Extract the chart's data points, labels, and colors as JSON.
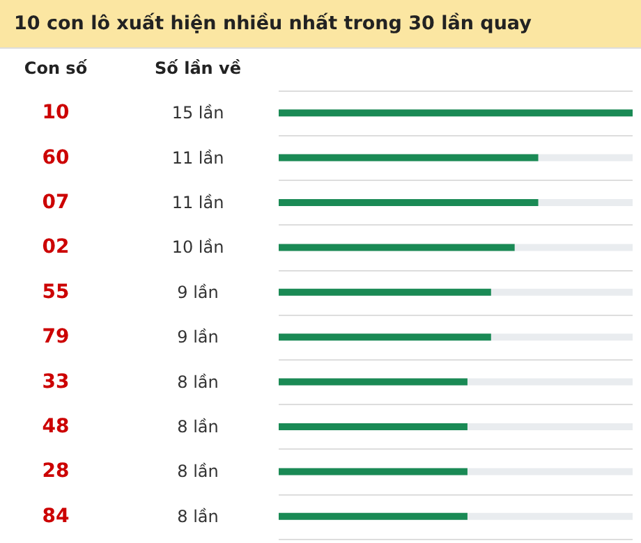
{
  "chart_data": {
    "type": "bar",
    "orientation": "horizontal",
    "title": "10 con lô xuất hiện nhiều nhất trong 30 lần quay",
    "ylabel": "Con số",
    "annotations": [
      "Số lần về"
    ],
    "categories": [
      "10",
      "60",
      "07",
      "02",
      "55",
      "79",
      "33",
      "48",
      "28",
      "84"
    ],
    "values": [
      15,
      11,
      11,
      10,
      9,
      9,
      8,
      8,
      8,
      8
    ],
    "value_labels": [
      "15 lần",
      "11 lần",
      "11 lần",
      "10 lần",
      "9 lần",
      "9 lần",
      "8 lần",
      "8 lần",
      "8 lần",
      "8 lần"
    ],
    "color": "#1a8a55",
    "grid": "y"
  }
}
